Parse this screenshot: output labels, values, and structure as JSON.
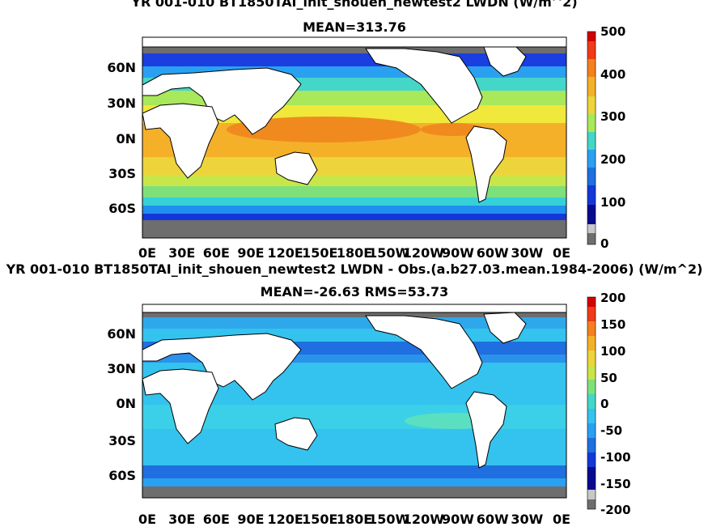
{
  "top_panel": {
    "title_line1": "YR 001-010 BT1850TAI_init_shouen_newtest2 LWDN (W/m^2)",
    "title_line2": "MEAN=313.76",
    "colorbar": {
      "ticks": [
        "0",
        "100",
        "200",
        "300",
        "400",
        "500"
      ]
    }
  },
  "bottom_panel": {
    "title_line1": "YR 001-010 BT1850TAI_init_shouen_newtest2 LWDN - Obs.(a.b27.03.mean.1984-2006) (W/m^2)",
    "title_line2": "MEAN=-26.63 RMS=53.73",
    "colorbar": {
      "ticks": [
        "-200",
        "-150",
        "-100",
        "-50",
        "0",
        "50",
        "100",
        "150",
        "200"
      ]
    }
  },
  "x_ticks": [
    "0E",
    "30E",
    "60E",
    "90E",
    "120E",
    "150E",
    "180E",
    "150W",
    "120W",
    "90W",
    "60W",
    "30W",
    "0E"
  ],
  "y_ticks": [
    "60N",
    "30N",
    "0N",
    "30S",
    "60S"
  ],
  "colors": {
    "ocean_warm": "#f5a623",
    "ocean_mid": "#e8e831",
    "ocean_cool": "#7fe06e",
    "ocean_cold": "#1a4be8",
    "diff_main": "#33c3ee",
    "diff_low": "#1f6fe0",
    "land": "#ffffff",
    "ice": "#6e6e6e"
  }
}
